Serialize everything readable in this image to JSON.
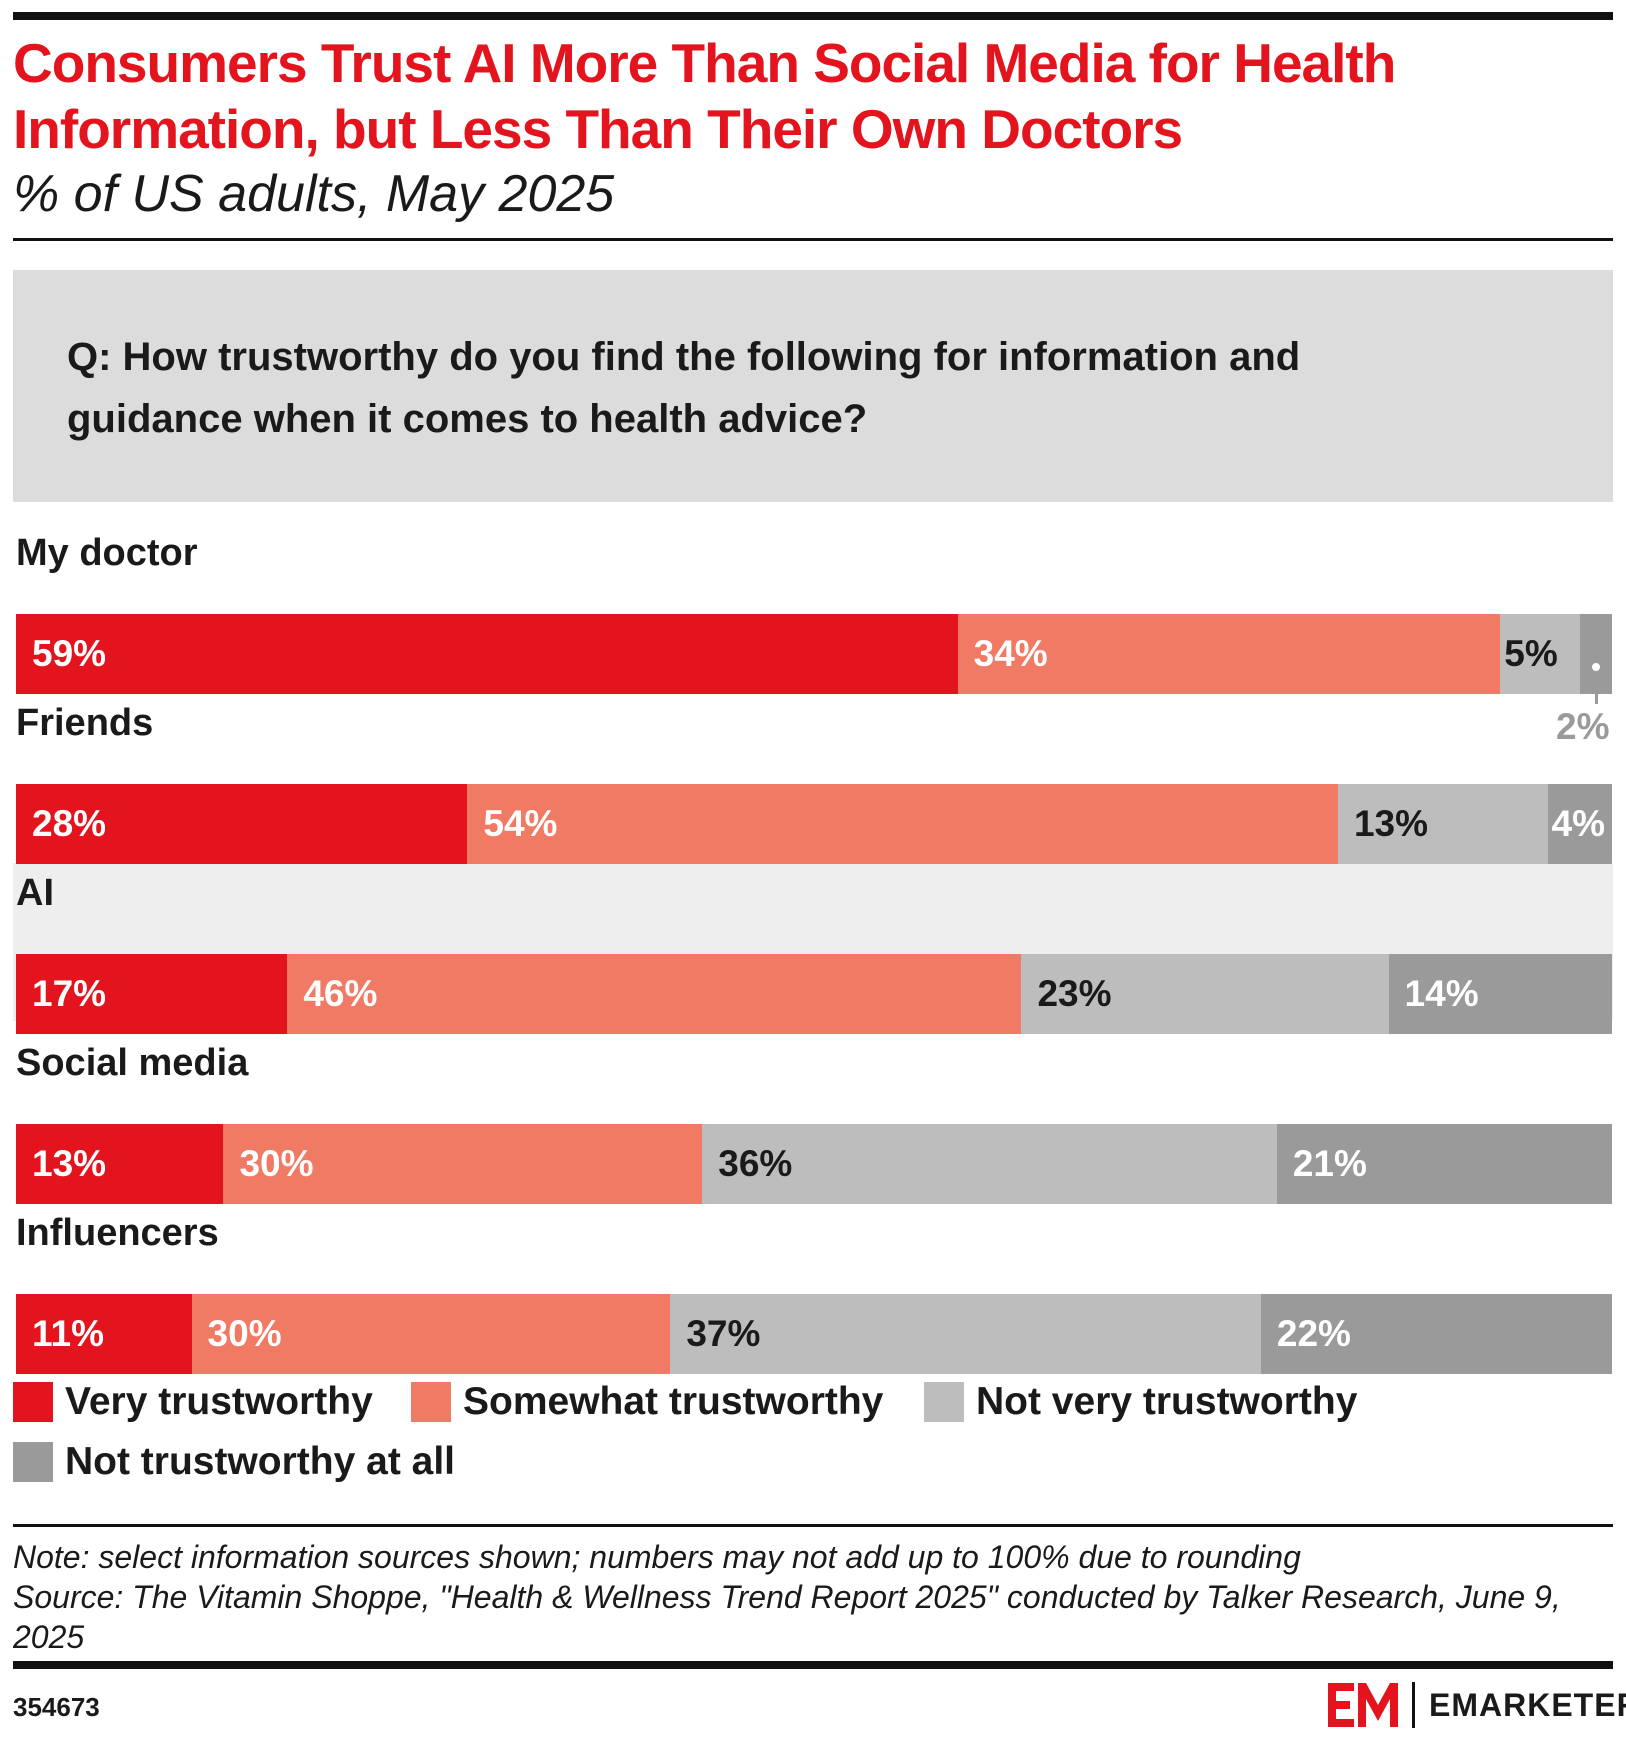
{
  "header": {
    "title": "Consumers Trust AI More Than Social Media for Health Information, but Less Than Their Own Doctors",
    "subtitle": "% of US adults, May 2025",
    "question": "Q: How trustworthy do you find the following for information and guidance when it comes to health advice?"
  },
  "colors": {
    "very": "#e3141d",
    "somewhat": "#f07a64",
    "not_very": "#bdbdbd",
    "not_at_all": "#9a9a9a",
    "highlight_band": "#eeeeee"
  },
  "chart_data": {
    "type": "bar",
    "orientation": "horizontal-stacked-100",
    "categories": [
      "My doctor",
      "Friends",
      "AI",
      "Social media",
      "Influencers"
    ],
    "series": [
      {
        "name": "Very trustworthy",
        "values": [
          59,
          28,
          17,
          13,
          11
        ],
        "labels": [
          "59%",
          "28%",
          "17%",
          "13%",
          "11%"
        ]
      },
      {
        "name": "Somewhat trustworthy",
        "values": [
          34,
          54,
          46,
          30,
          30
        ],
        "labels": [
          "34%",
          "54%",
          "46%",
          "30%",
          "30%"
        ]
      },
      {
        "name": "Not very trustworthy",
        "values": [
          5,
          13,
          23,
          36,
          37
        ],
        "labels": [
          "5%",
          "13%",
          "23%",
          "36%",
          "37%"
        ]
      },
      {
        "name": "Not trustworthy at all",
        "values": [
          2,
          4,
          14,
          21,
          22
        ],
        "labels": [
          "2%",
          "4%",
          "14%",
          "21%",
          "22%"
        ]
      }
    ],
    "highlighted_category": "AI",
    "legend_position": "bottom",
    "grid": false
  },
  "footer": {
    "note": "Note: select information sources shown; numbers may not add up to 100% due to rounding",
    "source": "Source: The Vitamin Shoppe, \"Health & Wellness Trend Report 2025\" conducted by Talker Research, June 9, 2025",
    "chart_id": "354673",
    "brand": "EMARKETER",
    "brand_icon": "em-logo-icon"
  }
}
